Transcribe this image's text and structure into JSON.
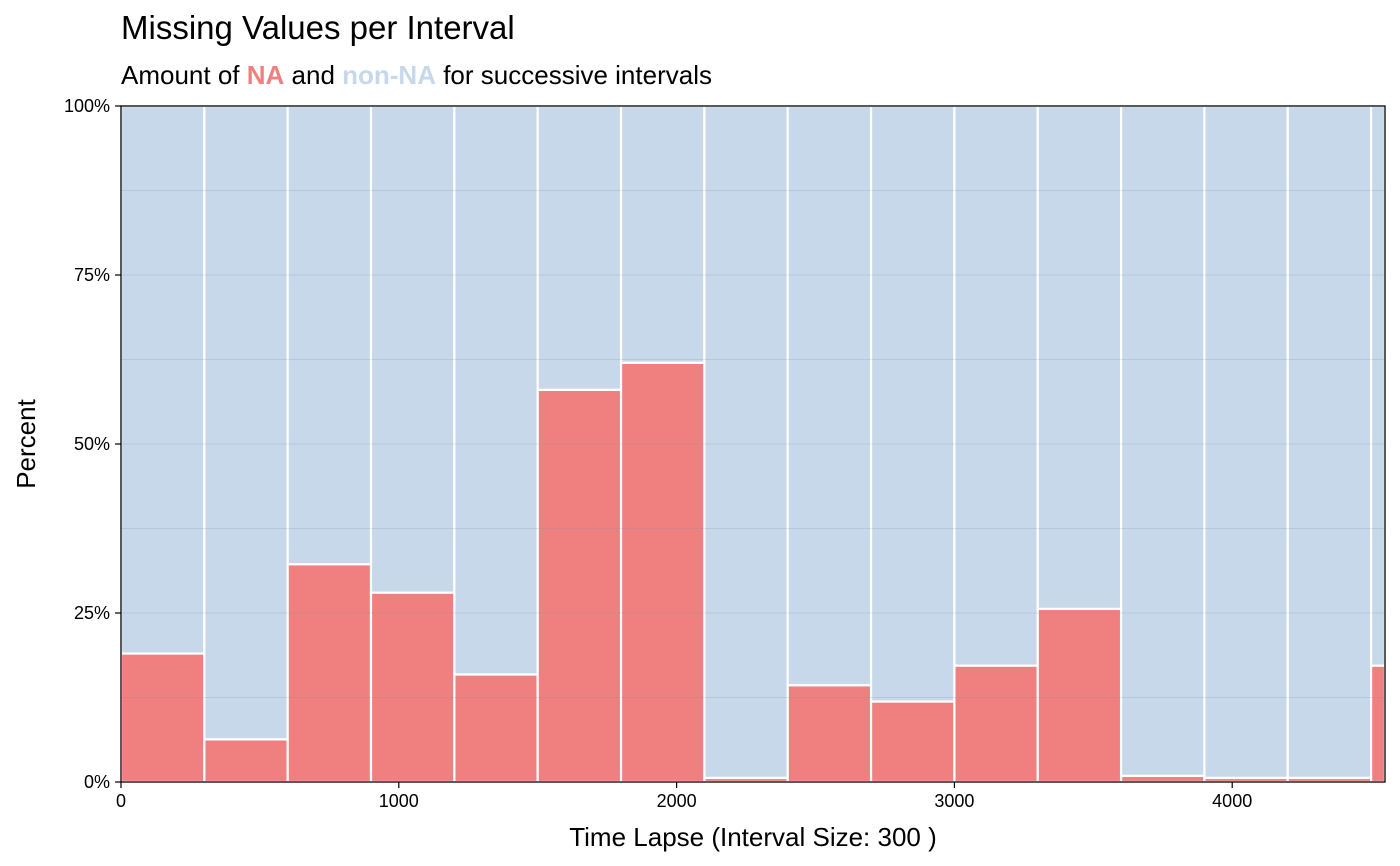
{
  "chart_data": {
    "type": "bar",
    "title": "Missing Values per Interval",
    "subtitle": {
      "prefix": "Amount of ",
      "na_label": "NA",
      "middle": " and ",
      "nonna_label": "non-NA",
      "suffix": " for successive intervals"
    },
    "xlabel": "Time Lapse (Interval Size: 300 )",
    "ylabel": "Percent",
    "interval_size": 300,
    "xlim": [
      0,
      4550
    ],
    "ylim": [
      0,
      100
    ],
    "x_ticks": [
      0,
      1000,
      2000,
      3000,
      4000
    ],
    "x_tick_labels": [
      "0",
      "1000",
      "2000",
      "3000",
      "4000"
    ],
    "y_ticks": [
      0,
      25,
      50,
      75,
      100
    ],
    "y_tick_labels": [
      "0%",
      "25%",
      "50%",
      "75%",
      "100%"
    ],
    "bins": [
      {
        "start": 0,
        "end": 300,
        "na_percent": 19
      },
      {
        "start": 300,
        "end": 600,
        "na_percent": 6.3
      },
      {
        "start": 600,
        "end": 900,
        "na_percent": 32.2
      },
      {
        "start": 900,
        "end": 1200,
        "na_percent": 28
      },
      {
        "start": 1200,
        "end": 1500,
        "na_percent": 15.9
      },
      {
        "start": 1500,
        "end": 1800,
        "na_percent": 58
      },
      {
        "start": 1800,
        "end": 2100,
        "na_percent": 62
      },
      {
        "start": 2100,
        "end": 2400,
        "na_percent": 0.6
      },
      {
        "start": 2400,
        "end": 2700,
        "na_percent": 14.3
      },
      {
        "start": 2700,
        "end": 3000,
        "na_percent": 11.9
      },
      {
        "start": 3000,
        "end": 3300,
        "na_percent": 17.2
      },
      {
        "start": 3300,
        "end": 3600,
        "na_percent": 25.6
      },
      {
        "start": 3600,
        "end": 3900,
        "na_percent": 0.9
      },
      {
        "start": 3900,
        "end": 4200,
        "na_percent": 0.6
      },
      {
        "start": 4200,
        "end": 4500,
        "na_percent": 0.6
      },
      {
        "start": 4500,
        "end": 4550,
        "na_percent": 17.2
      }
    ],
    "colors": {
      "na": "#F08080",
      "nonna": "#C6D8E9",
      "bar_border": "#ffffff"
    },
    "grid": true,
    "legend": "subtitle"
  }
}
